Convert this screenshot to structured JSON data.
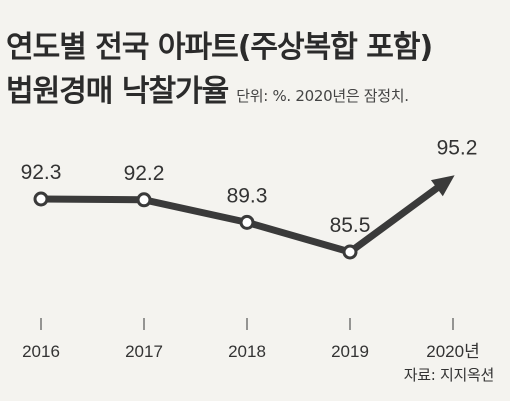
{
  "title": {
    "line1": "연도별 전국 아파트(주상복합 포함)",
    "line2": "법원경매 낙찰가율",
    "unit_note": "단위: %. 2020년은 잠정치."
  },
  "source": "자료: 지지옥션",
  "colors": {
    "line": "#3a3a3a",
    "background": "#f4f3ef",
    "marker_fill": "#ffffff"
  },
  "chart_data": {
    "type": "line",
    "title": "연도별 전국 아파트(주상복합 포함) 법원경매 낙찰가율",
    "subtitle": "단위: %. 2020년은 잠정치.",
    "categories": [
      "2016",
      "2017",
      "2018",
      "2019",
      "2020년"
    ],
    "series": [
      {
        "values": [
          92.3,
          92.2,
          89.3,
          85.5,
          95.2
        ]
      }
    ],
    "data_labels": [
      "92.3",
      "92.2",
      "89.3",
      "85.5",
      "95.2"
    ],
    "last_point_marker": "arrow",
    "ylim": [
      82,
      98
    ],
    "grid": false,
    "legend": "none",
    "source": "자료: 지지옥션"
  }
}
